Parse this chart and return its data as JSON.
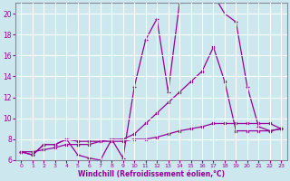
{
  "xlabel": "Windchill (Refroidissement éolien,°C)",
  "bg_color": "#cce8ee",
  "line_color": "#990099",
  "grid_color": "#ffffff",
  "xlim": [
    -0.5,
    23.5
  ],
  "ylim": [
    6,
    21
  ],
  "yticks": [
    6,
    8,
    10,
    12,
    14,
    16,
    18,
    20
  ],
  "xticks": [
    0,
    1,
    2,
    3,
    4,
    5,
    6,
    7,
    8,
    9,
    10,
    11,
    12,
    13,
    14,
    15,
    16,
    17,
    18,
    19,
    20,
    21,
    22,
    23
  ],
  "s1_x": [
    0,
    1,
    2,
    3,
    4,
    5,
    6,
    7,
    8,
    9,
    10,
    11,
    12,
    13,
    14,
    15,
    16,
    17,
    18,
    19,
    20,
    21,
    22,
    23
  ],
  "s1_y": [
    6.8,
    6.5,
    7.5,
    7.5,
    8.0,
    6.5,
    6.2,
    6.0,
    8.0,
    6.2,
    13.0,
    17.5,
    19.5,
    12.5,
    21.0,
    21.5,
    21.5,
    21.8,
    20.0,
    19.2,
    13.0,
    9.2,
    8.8,
    9.0
  ],
  "s2_x": [
    0,
    1,
    2,
    3,
    4,
    5,
    6,
    7,
    8,
    9,
    10,
    11,
    12,
    13,
    14,
    15,
    16,
    17,
    18,
    19,
    20,
    21,
    22,
    23
  ],
  "s2_y": [
    6.8,
    6.5,
    7.5,
    7.5,
    8.0,
    7.8,
    7.8,
    7.8,
    8.0,
    8.0,
    8.5,
    9.5,
    10.5,
    11.5,
    12.5,
    13.5,
    14.5,
    16.8,
    13.5,
    8.8,
    8.8,
    8.8,
    8.8,
    9.0
  ],
  "s3_x": [
    0,
    1,
    2,
    3,
    4,
    5,
    6,
    7,
    8,
    9,
    10,
    11,
    12,
    13,
    14,
    15,
    16,
    17,
    18,
    19,
    20,
    21,
    22,
    23
  ],
  "s3_y": [
    6.8,
    6.8,
    7.0,
    7.2,
    7.5,
    7.5,
    7.5,
    7.8,
    7.8,
    7.8,
    8.0,
    8.0,
    8.2,
    8.5,
    8.8,
    9.0,
    9.2,
    9.5,
    9.5,
    9.5,
    9.5,
    9.5,
    9.5,
    9.0
  ]
}
